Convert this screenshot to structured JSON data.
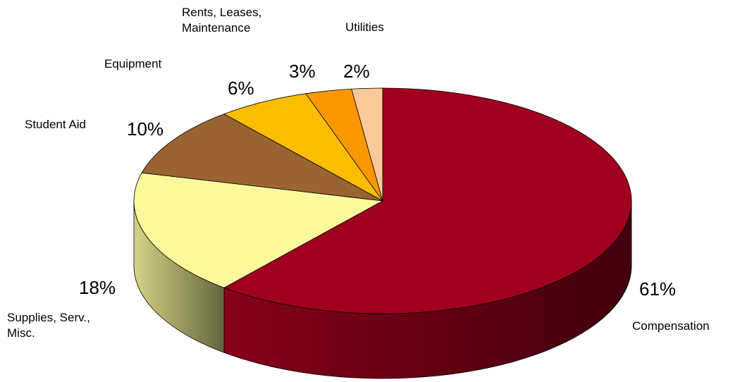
{
  "chart_data": {
    "type": "pie",
    "categories": [
      "Compensation",
      "Supplies, Serv., Misc.",
      "Student Aid",
      "Equipment",
      "Rents, Leases, Maintenance",
      "Utilities"
    ],
    "values": [
      61,
      18,
      10,
      6,
      3,
      2
    ],
    "value_labels": [
      "61%",
      "18%",
      "10%",
      "6%",
      "3%",
      "2%"
    ],
    "colors": [
      "#a0001e",
      "#fbf99c",
      "#9a6432",
      "#fbbd00",
      "#fb9700",
      "#fbc898"
    ]
  }
}
